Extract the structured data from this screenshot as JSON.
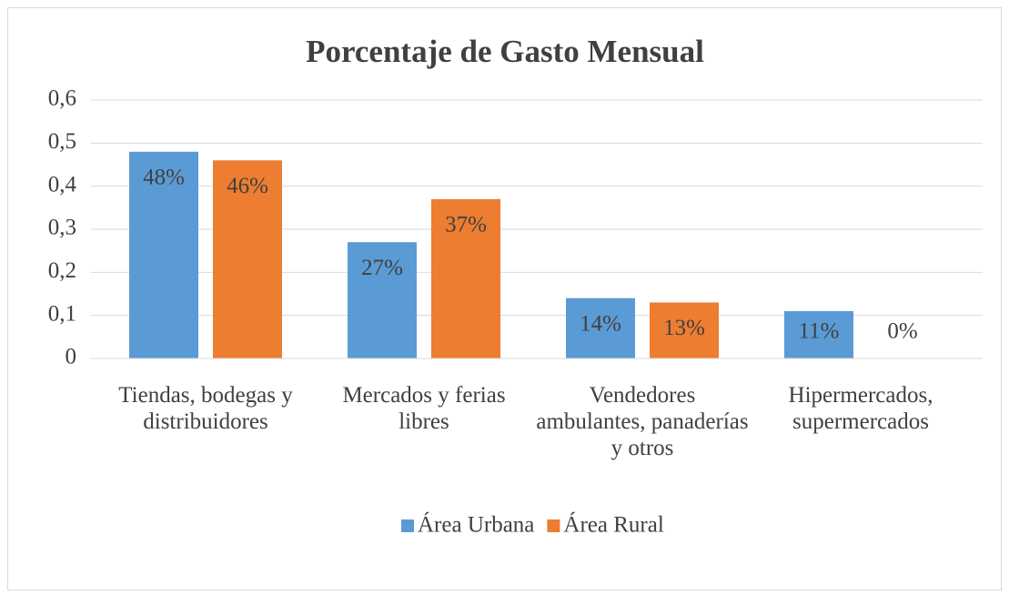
{
  "chart_data": {
    "type": "bar",
    "title": "Porcentaje de Gasto Mensual",
    "categories": [
      "Tiendas, bodegas y distribuidores",
      "Mercados y ferias libres",
      "Vendedores ambulantes, panaderías y otros",
      "Hipermercados, supermercados"
    ],
    "series": [
      {
        "name": "Área Urbana",
        "color": "#5b9bd5",
        "values": [
          0.48,
          0.27,
          0.14,
          0.11
        ],
        "value_labels": [
          "48%",
          "27%",
          "14%",
          "11%"
        ]
      },
      {
        "name": "Área Rural",
        "color": "#ed7d31",
        "values": [
          0.46,
          0.37,
          0.13,
          0
        ],
        "value_labels": [
          "46%",
          "37%",
          "13%",
          "0%"
        ]
      }
    ],
    "ylim": [
      0,
      0.6
    ],
    "yticks": [
      0,
      {
        "value": 0.1,
        "label": "0,1"
      },
      {
        "value": 0.2,
        "label": "0,2"
      },
      {
        "value": 0.3,
        "label": "0,3"
      },
      {
        "value": 0.4,
        "label": "0,4"
      },
      {
        "value": 0.5,
        "label": "0,5"
      },
      {
        "value": 0.6,
        "label": "0,6"
      }
    ],
    "grid": true,
    "legend": "bottom"
  }
}
